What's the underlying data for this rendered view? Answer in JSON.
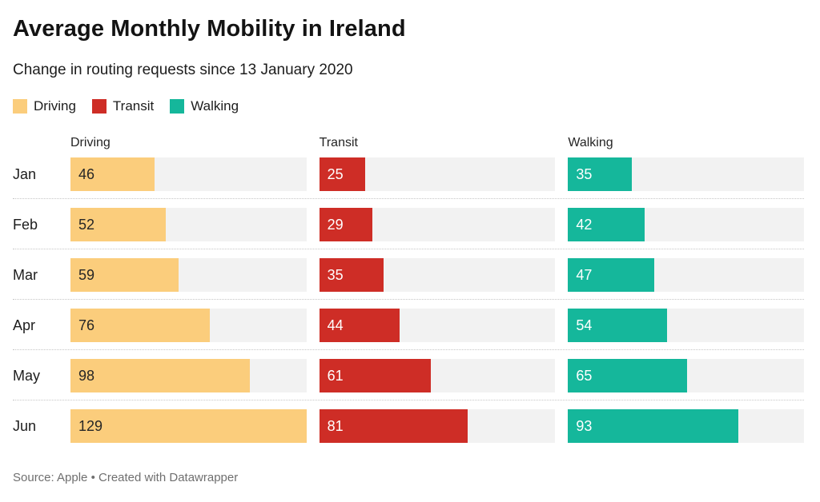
{
  "header": {
    "title": "Average Monthly Mobility in Ireland",
    "subtitle": "Change in routing requests since 13 January 2020"
  },
  "chart_data": {
    "type": "bar",
    "orientation": "horizontal",
    "layout": "split-bars-small-multiples",
    "categories": [
      "Jan",
      "Feb",
      "Mar",
      "Apr",
      "May",
      "Jun"
    ],
    "series": [
      {
        "name": "Driving",
        "color": "#fbcd7c",
        "label_color": "#262626",
        "values": [
          46,
          52,
          59,
          76,
          98,
          129
        ]
      },
      {
        "name": "Transit",
        "color": "#ce2d26",
        "label_color": "#ffffff",
        "values": [
          25,
          29,
          35,
          44,
          61,
          81
        ]
      },
      {
        "name": "Walking",
        "color": "#15b79b",
        "label_color": "#ffffff",
        "values": [
          35,
          42,
          47,
          54,
          65,
          93
        ]
      }
    ],
    "xlim": [
      0,
      129
    ],
    "track_color": "#f2f2f2",
    "value_labels": "inside-bar-left",
    "legend_position": "top-left",
    "grid": "off"
  },
  "footer": {
    "source": "Source: Apple • Created with Datawrapper"
  }
}
